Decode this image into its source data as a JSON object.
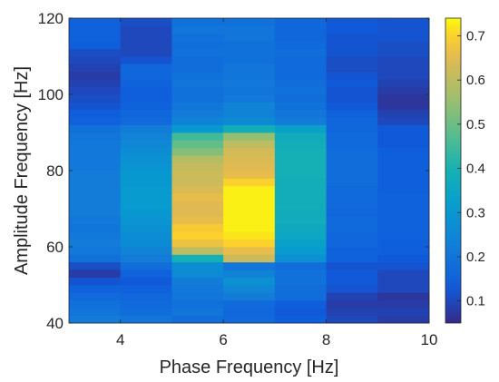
{
  "chart_data": {
    "type": "heatmap",
    "title": "",
    "xlabel": "Phase Frequency [Hz]",
    "ylabel": "Amplitude Frequency [Hz]",
    "xlim": [
      3,
      10
    ],
    "ylim": [
      40,
      120
    ],
    "clim": [
      0.05,
      0.74
    ],
    "x_ticks": [
      "4",
      "6",
      "8",
      "10"
    ],
    "y_ticks": [
      "40",
      "60",
      "80",
      "100",
      "120"
    ],
    "colorbar": {
      "placement": "right",
      "colormap": "parula",
      "ticks": [
        "0.1",
        "0.2",
        "0.3",
        "0.4",
        "0.5",
        "0.6",
        "0.7"
      ]
    },
    "grid": false,
    "x_centers": [
      3.5,
      4.5,
      5.5,
      6.5,
      7.5,
      8.5,
      9.5
    ],
    "y_centers": [
      41,
      43,
      45,
      47,
      49,
      51,
      53,
      55,
      57,
      59,
      61,
      63,
      65,
      67,
      69,
      71,
      73,
      75,
      77,
      79,
      81,
      83,
      85,
      87,
      89,
      91,
      93,
      95,
      97,
      99,
      101,
      103,
      105,
      107,
      109,
      111,
      113,
      115,
      117,
      119
    ],
    "z": [
      [
        0.22,
        0.2,
        0.18,
        0.17,
        0.14,
        0.1,
        0.08
      ],
      [
        0.2,
        0.18,
        0.2,
        0.16,
        0.13,
        0.09,
        0.09
      ],
      [
        0.19,
        0.17,
        0.19,
        0.17,
        0.14,
        0.08,
        0.08
      ],
      [
        0.17,
        0.16,
        0.2,
        0.22,
        0.18,
        0.09,
        0.07
      ],
      [
        0.15,
        0.15,
        0.21,
        0.25,
        0.18,
        0.12,
        0.1
      ],
      [
        0.12,
        0.13,
        0.22,
        0.28,
        0.19,
        0.13,
        0.1
      ],
      [
        0.08,
        0.15,
        0.26,
        0.24,
        0.19,
        0.13,
        0.1
      ],
      [
        0.11,
        0.18,
        0.27,
        0.2,
        0.18,
        0.12,
        0.12
      ],
      [
        0.19,
        0.22,
        0.39,
        0.62,
        0.28,
        0.15,
        0.13
      ],
      [
        0.21,
        0.24,
        0.6,
        0.66,
        0.31,
        0.15,
        0.14
      ],
      [
        0.22,
        0.26,
        0.67,
        0.7,
        0.33,
        0.16,
        0.14
      ],
      [
        0.21,
        0.27,
        0.7,
        0.72,
        0.35,
        0.16,
        0.15
      ],
      [
        0.2,
        0.28,
        0.69,
        0.73,
        0.36,
        0.17,
        0.15
      ],
      [
        0.21,
        0.29,
        0.66,
        0.73,
        0.37,
        0.17,
        0.15
      ],
      [
        0.22,
        0.3,
        0.65,
        0.73,
        0.37,
        0.16,
        0.15
      ],
      [
        0.22,
        0.31,
        0.65,
        0.73,
        0.38,
        0.17,
        0.15
      ],
      [
        0.22,
        0.31,
        0.66,
        0.73,
        0.38,
        0.17,
        0.15
      ],
      [
        0.22,
        0.31,
        0.64,
        0.73,
        0.38,
        0.17,
        0.14
      ],
      [
        0.22,
        0.3,
        0.62,
        0.7,
        0.38,
        0.18,
        0.14
      ],
      [
        0.22,
        0.3,
        0.62,
        0.66,
        0.39,
        0.18,
        0.14
      ],
      [
        0.21,
        0.29,
        0.61,
        0.65,
        0.39,
        0.18,
        0.14
      ],
      [
        0.21,
        0.28,
        0.59,
        0.64,
        0.39,
        0.18,
        0.14
      ],
      [
        0.21,
        0.27,
        0.53,
        0.63,
        0.39,
        0.18,
        0.14
      ],
      [
        0.21,
        0.25,
        0.49,
        0.6,
        0.38,
        0.17,
        0.13
      ],
      [
        0.2,
        0.24,
        0.45,
        0.55,
        0.37,
        0.17,
        0.13
      ],
      [
        0.19,
        0.22,
        0.3,
        0.38,
        0.33,
        0.16,
        0.13
      ],
      [
        0.15,
        0.17,
        0.24,
        0.26,
        0.22,
        0.16,
        0.1
      ],
      [
        0.14,
        0.16,
        0.22,
        0.24,
        0.2,
        0.15,
        0.09
      ],
      [
        0.12,
        0.15,
        0.2,
        0.24,
        0.19,
        0.13,
        0.07
      ],
      [
        0.11,
        0.14,
        0.19,
        0.21,
        0.18,
        0.12,
        0.07
      ],
      [
        0.1,
        0.14,
        0.19,
        0.2,
        0.19,
        0.12,
        0.08
      ],
      [
        0.09,
        0.15,
        0.2,
        0.21,
        0.18,
        0.13,
        0.09
      ],
      [
        0.08,
        0.16,
        0.19,
        0.2,
        0.17,
        0.12,
        0.1
      ],
      [
        0.09,
        0.16,
        0.18,
        0.2,
        0.17,
        0.11,
        0.1
      ],
      [
        0.1,
        0.12,
        0.18,
        0.19,
        0.17,
        0.11,
        0.1
      ],
      [
        0.11,
        0.1,
        0.19,
        0.19,
        0.18,
        0.12,
        0.11
      ],
      [
        0.14,
        0.1,
        0.18,
        0.19,
        0.17,
        0.12,
        0.11
      ],
      [
        0.15,
        0.1,
        0.19,
        0.2,
        0.16,
        0.12,
        0.12
      ],
      [
        0.15,
        0.1,
        0.2,
        0.2,
        0.16,
        0.13,
        0.12
      ],
      [
        0.15,
        0.11,
        0.19,
        0.19,
        0.16,
        0.13,
        0.12
      ]
    ]
  }
}
